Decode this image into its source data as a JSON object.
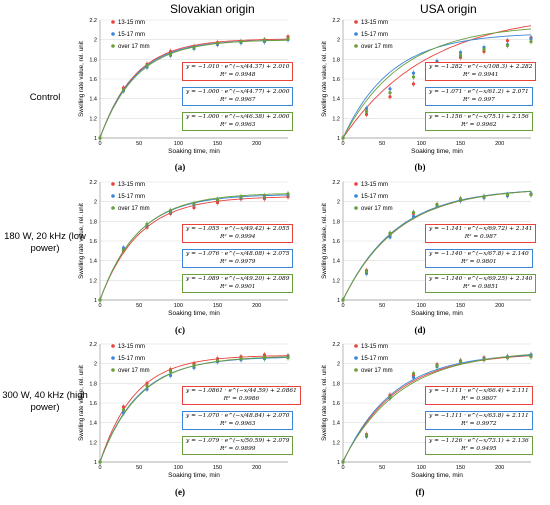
{
  "columns": [
    "Slovakian origin",
    "USA origin"
  ],
  "rows": [
    "Control",
    "180 W, 20 kHz (low power)",
    "300 W, 40 kHz (high power)"
  ],
  "legend": [
    "13-15 mm",
    "15-17 mm",
    "over 17 mm"
  ],
  "colors": {
    "13-15 mm": "#e8423b",
    "15-17 mm": "#3a86d8",
    "over 17 mm": "#6a9e3a"
  },
  "panels": [
    {
      "id": "a",
      "label": "(a)",
      "eqs": [
        [
          "y = −1.010 · e^(−x/44.37) + 2.010",
          "R² = 0.9948"
        ],
        [
          "y = −1.000 · e^(−x/44.77) + 2.000",
          "R² = 0.9967"
        ],
        [
          "y = −1.000 · e^(−x/46.38) + 2.000",
          "R² = 0.9963"
        ]
      ]
    },
    {
      "id": "b",
      "label": "(b)",
      "eqs": [
        [
          "y = −1.282 · e^(−x/108.3) + 2.282",
          "R² = 0.9941"
        ],
        [
          "y = −1.071 · e^(−x/61.2) + 2.071",
          "R² = 0.997"
        ],
        [
          "y = −1.156 · e^(−x/75.1) + 2.156",
          "R² = 0.9962"
        ]
      ]
    },
    {
      "id": "c",
      "label": "(c)",
      "eqs": [
        [
          "y = −1.055 · e^(−x/49.42) + 2.055",
          "R² = 0.9994"
        ],
        [
          "y = −1.076 · e^(−x/48.08) + 2.075",
          "R² = 0.9979"
        ],
        [
          "y = −1.089 · e^(−x/49.20) + 2.089",
          "R² = 0.9901"
        ]
      ]
    },
    {
      "id": "d",
      "label": "(d)",
      "eqs": [
        [
          "y = −1.141 · e^(−x/69.72) + 2.141",
          "R² = 0.987"
        ],
        [
          "y = −1.140 · e^(−x/67.8) + 2.140",
          "R² = 0.9801"
        ],
        [
          "y = −1.140 · e^(−x/69.25) + 2.140",
          "R² = 0.9851"
        ]
      ]
    },
    {
      "id": "e",
      "label": "(e)",
      "eqs": [
        [
          "y = −1.0861 · e^(−x/44.59) + 2.0861",
          "R² = 0.9986"
        ],
        [
          "y = −1.070 · e^(−x/48.84) + 2.070",
          "R² = 0.9963"
        ],
        [
          "y = −1.079 · e^(−x/50.59) + 2.079",
          "R² = 0.9899"
        ]
      ]
    },
    {
      "id": "f",
      "label": "(f)",
      "eqs": [
        [
          "y = −1.111 · e^(−x/66.4) + 2.111",
          "R² = 0.9807"
        ],
        [
          "y = −1.111 · e^(−x/63.8) + 2.111",
          "R² = 0.9972"
        ],
        [
          "y = −1.126 · e^(−x/73.1) + 2.136",
          "R² = 0.9495"
        ]
      ]
    }
  ],
  "chart_data": [
    {
      "id": "a",
      "type": "scatter",
      "xlabel": "Soaking time, min",
      "ylabel": "Swelling rate value, rel. unit",
      "xlim": [
        0,
        240
      ],
      "ylim": [
        1,
        2.2
      ],
      "x": [
        0,
        30,
        60,
        90,
        120,
        150,
        180,
        210,
        240
      ],
      "series": [
        {
          "name": "13-15 mm",
          "values": [
            1.0,
            1.51,
            1.75,
            1.88,
            1.93,
            1.97,
            1.98,
            1.99,
            2.03
          ],
          "fit": {
            "a": 1.01,
            "tau": 44.37,
            "c": 2.01
          }
        },
        {
          "name": "15-17 mm",
          "values": [
            1.0,
            1.48,
            1.72,
            1.84,
            1.91,
            1.95,
            1.97,
            1.98,
            2.0
          ],
          "fit": {
            "a": 1.0,
            "tau": 44.77,
            "c": 2.0
          }
        },
        {
          "name": "over 17 mm",
          "values": [
            1.0,
            1.49,
            1.74,
            1.85,
            1.92,
            1.96,
            1.98,
            2.0,
            2.01
          ],
          "fit": {
            "a": 1.0,
            "tau": 46.38,
            "c": 2.0
          }
        }
      ]
    },
    {
      "id": "b",
      "type": "scatter",
      "xlabel": "Soaking time, min",
      "ylabel": "Swelling rate value, rel. unit",
      "xlim": [
        0,
        240
      ],
      "ylim": [
        1,
        2.2
      ],
      "x": [
        0,
        30,
        60,
        90,
        120,
        150,
        180,
        210,
        240
      ],
      "series": [
        {
          "name": "13-15 mm",
          "values": [
            1.0,
            1.24,
            1.42,
            1.55,
            1.7,
            1.82,
            1.88,
            1.99,
            2.02
          ],
          "fit": {
            "a": 1.282,
            "tau": 108.3,
            "c": 2.282
          }
        },
        {
          "name": "15-17 mm",
          "values": [
            1.0,
            1.3,
            1.5,
            1.66,
            1.78,
            1.87,
            1.92,
            1.95,
            2.01
          ],
          "fit": {
            "a": 1.071,
            "tau": 61.2,
            "c": 2.071
          }
        },
        {
          "name": "over 17 mm",
          "values": [
            1.0,
            1.27,
            1.46,
            1.62,
            1.74,
            1.84,
            1.9,
            1.94,
            1.98
          ],
          "fit": {
            "a": 1.156,
            "tau": 75.1,
            "c": 2.156
          }
        }
      ]
    },
    {
      "id": "c",
      "type": "scatter",
      "xlabel": "Soaking time, min",
      "ylabel": "Swelling rate value, rel. unit",
      "xlim": [
        0,
        240
      ],
      "ylim": [
        1,
        2.2
      ],
      "x": [
        0,
        30,
        60,
        90,
        120,
        150,
        180,
        210,
        240
      ],
      "series": [
        {
          "name": "13-15 mm",
          "values": [
            1.0,
            1.5,
            1.74,
            1.88,
            1.94,
            1.99,
            2.03,
            2.03,
            2.05
          ],
          "fit": {
            "a": 1.055,
            "tau": 49.42,
            "c": 2.055
          }
        },
        {
          "name": "15-17 mm",
          "values": [
            1.0,
            1.53,
            1.76,
            1.9,
            1.97,
            2.02,
            2.04,
            2.05,
            2.07
          ],
          "fit": {
            "a": 1.076,
            "tau": 48.08,
            "c": 2.075
          }
        },
        {
          "name": "over 17 mm",
          "values": [
            1.0,
            1.51,
            1.77,
            1.91,
            1.98,
            2.02,
            2.05,
            2.06,
            2.08
          ],
          "fit": {
            "a": 1.089,
            "tau": 49.2,
            "c": 2.089
          }
        }
      ]
    },
    {
      "id": "d",
      "type": "scatter",
      "xlabel": "Soaking time, min",
      "ylabel": "Swelling rate value, rel. unit",
      "xlim": [
        0,
        240
      ],
      "ylim": [
        1,
        2.2
      ],
      "x": [
        0,
        30,
        60,
        90,
        120,
        150,
        180,
        210,
        240
      ],
      "series": [
        {
          "name": "13-15 mm",
          "values": [
            1.0,
            1.3,
            1.66,
            1.88,
            1.97,
            2.02,
            2.05,
            2.07,
            2.08
          ],
          "fit": {
            "a": 1.141,
            "tau": 69.72,
            "c": 2.141
          }
        },
        {
          "name": "15-17 mm",
          "values": [
            1.0,
            1.27,
            1.64,
            1.85,
            1.96,
            2.01,
            2.04,
            2.06,
            2.08
          ],
          "fit": {
            "a": 1.14,
            "tau": 67.8,
            "c": 2.14
          }
        },
        {
          "name": "over 17 mm",
          "values": [
            1.0,
            1.29,
            1.68,
            1.89,
            1.97,
            2.03,
            2.05,
            2.07,
            2.07
          ],
          "fit": {
            "a": 1.14,
            "tau": 69.25,
            "c": 2.14
          }
        }
      ]
    },
    {
      "id": "e",
      "type": "scatter",
      "xlabel": "Soaking time, min",
      "ylabel": "Swelling rate value, rel. unit",
      "xlim": [
        0,
        240
      ],
      "ylim": [
        1,
        2.2
      ],
      "x": [
        0,
        30,
        60,
        90,
        120,
        150,
        180,
        210,
        240
      ],
      "series": [
        {
          "name": "13-15 mm",
          "values": [
            1.0,
            1.56,
            1.8,
            1.94,
            2.0,
            2.05,
            2.07,
            2.09,
            2.08
          ],
          "fit": {
            "a": 1.0861,
            "tau": 44.59,
            "c": 2.0861
          }
        },
        {
          "name": "15-17 mm",
          "values": [
            1.0,
            1.5,
            1.74,
            1.88,
            1.96,
            2.02,
            2.04,
            2.05,
            2.07
          ],
          "fit": {
            "a": 1.07,
            "tau": 48.84,
            "c": 2.07
          }
        },
        {
          "name": "over 17 mm",
          "values": [
            1.0,
            1.53,
            1.77,
            1.92,
            1.98,
            2.03,
            2.05,
            2.06,
            2.06
          ],
          "fit": {
            "a": 1.079,
            "tau": 50.59,
            "c": 2.079
          }
        }
      ]
    },
    {
      "id": "f",
      "type": "scatter",
      "xlabel": "Soaking time, min",
      "ylabel": "Swelling rate value, rel. unit",
      "xlim": [
        0,
        240
      ],
      "ylim": [
        1,
        2.2
      ],
      "x": [
        0,
        30,
        60,
        90,
        120,
        150,
        180,
        210,
        240
      ],
      "series": [
        {
          "name": "13-15 mm",
          "values": [
            1.0,
            1.28,
            1.68,
            1.88,
            1.99,
            2.03,
            2.06,
            2.07,
            2.09
          ],
          "fit": {
            "a": 1.111,
            "tau": 66.4,
            "c": 2.111
          }
        },
        {
          "name": "15-17 mm",
          "values": [
            1.0,
            1.26,
            1.65,
            1.86,
            1.97,
            2.02,
            2.05,
            2.07,
            2.09
          ],
          "fit": {
            "a": 1.111,
            "tau": 63.8,
            "c": 2.111
          }
        },
        {
          "name": "over 17 mm",
          "values": [
            1.0,
            1.27,
            1.66,
            1.9,
            1.98,
            2.02,
            2.04,
            2.06,
            2.07
          ],
          "fit": {
            "a": 1.126,
            "tau": 73.1,
            "c": 2.136
          }
        }
      ]
    }
  ]
}
